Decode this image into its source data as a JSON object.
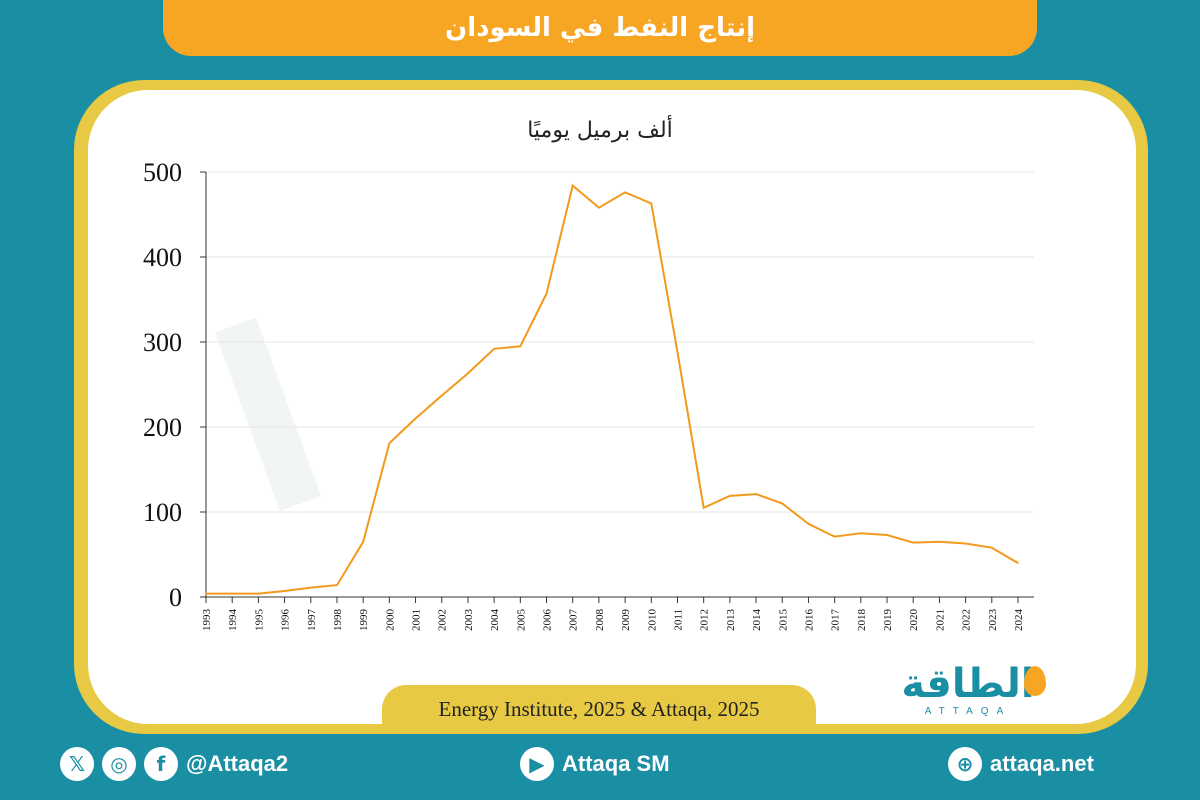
{
  "header": {
    "title": "إنتاج النفط في السودان"
  },
  "source": "Energy Institute, 2025 & Attaqa, 2025",
  "brand": {
    "name": "الطاقة",
    "sub": "ATTAQA"
  },
  "footer": {
    "social_handle": "@Attaqa2",
    "youtube": "Attaqa SM",
    "website": "attaqa.net"
  },
  "colors": {
    "background": "#1a8fa3",
    "accent": "#f6a623",
    "frame": "#e7c944",
    "line": "#f29a1d"
  },
  "chart_data": {
    "type": "line",
    "title": "",
    "unit_label": "ألف برميل يوميًا",
    "xlabel": "",
    "ylabel": "",
    "ylim": [
      0,
      500
    ],
    "yticks": [
      "0",
      "100",
      "200",
      "300",
      "400",
      "500"
    ],
    "categories": [
      "1993",
      "1994",
      "1995",
      "1996",
      "1997",
      "1998",
      "1999",
      "2000",
      "2001",
      "2002",
      "2003",
      "2004",
      "2005",
      "2006",
      "2007",
      "2008",
      "2009",
      "2010",
      "2011",
      "2012",
      "2013",
      "2014",
      "2015",
      "2016",
      "2017",
      "2018",
      "2019",
      "2020",
      "2021",
      "2022",
      "2023",
      "2024"
    ],
    "series": [
      {
        "values": [
          4,
          4,
          4,
          7,
          11,
          14,
          65,
          181,
          210,
          237,
          263,
          292,
          295,
          357,
          484,
          458,
          476,
          463,
          288,
          105,
          119,
          121,
          110,
          86,
          71,
          75,
          73,
          64,
          65,
          63,
          58,
          40
        ]
      }
    ],
    "grid": true,
    "legend": "none"
  }
}
